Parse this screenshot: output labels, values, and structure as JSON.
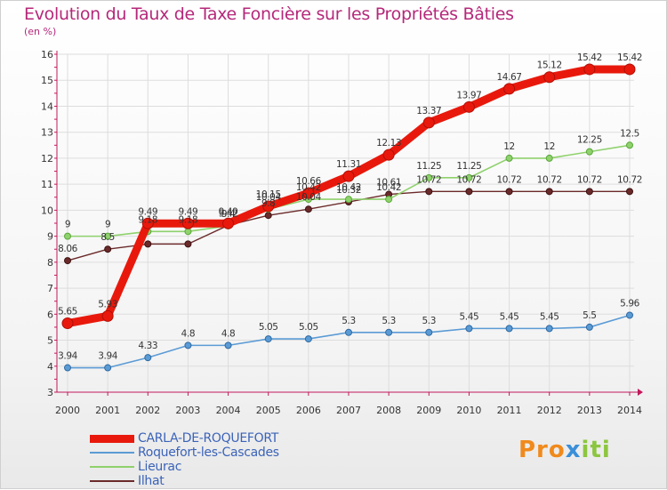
{
  "colors": {
    "title": "#b5287a",
    "axis": "#c2185b",
    "tick_text": "#333333",
    "grid": "#dddddd"
  },
  "logo": {
    "text": "Proxiti",
    "part1": "Pro",
    "part2": "x",
    "part3": "iti"
  },
  "chart_data": {
    "type": "line",
    "title": "Evolution du Taux de Taxe Foncière sur les Propriétés Bâties",
    "ylabel": "(en %)",
    "xlabel": "",
    "x": [
      "2000",
      "2001",
      "2002",
      "2003",
      "2004",
      "2005",
      "2006",
      "2007",
      "2008",
      "2009",
      "2010",
      "2011",
      "2012",
      "2013",
      "2014"
    ],
    "ylim": [
      3,
      16
    ],
    "yticks": [
      3,
      4,
      5,
      6,
      7,
      8,
      9,
      10,
      11,
      12,
      13,
      14,
      15,
      16
    ],
    "grid": true,
    "legend_position": "bottom-left",
    "series": [
      {
        "name": "CARLA-DE-ROQUEFORT",
        "color": "#e8190c",
        "values": [
          5.65,
          5.93,
          9.49,
          9.49,
          9.49,
          10.15,
          10.66,
          11.31,
          12.13,
          13.37,
          13.97,
          14.67,
          15.12,
          15.42,
          15.42
        ],
        "labels": [
          "5.65",
          "5.93",
          "9.49",
          "9.49",
          "9.49",
          "10.15",
          "10.66",
          "11.31",
          "12.13",
          "13.37",
          "13.97",
          "14.67",
          "15.12",
          "15.42",
          "15.42"
        ]
      },
      {
        "name": "Roquefort-les-Cascades",
        "color": "#5b9bd5",
        "values": [
          3.94,
          3.94,
          4.33,
          4.8,
          4.8,
          5.05,
          5.05,
          5.3,
          5.3,
          5.3,
          5.45,
          5.45,
          5.45,
          5.5,
          5.96
        ],
        "labels": [
          "3.94",
          "3.94",
          "4.33",
          "4.8",
          "4.8",
          "5.05",
          "5.05",
          "5.3",
          "5.3",
          "5.3",
          "5.45",
          "5.45",
          "5.45",
          "5.5",
          "5.96"
        ]
      },
      {
        "name": "Lieurac",
        "color": "#8fd16c",
        "values": [
          9,
          9,
          9.18,
          9.18,
          9.4,
          10.04,
          10.42,
          10.42,
          10.42,
          11.25,
          11.25,
          12,
          12,
          12.25,
          12.5
        ],
        "labels": [
          "9",
          "9",
          "9.18",
          "9.18",
          "9.4",
          "10.04",
          "10.42",
          "10.42",
          "10.42",
          "11.25",
          "11.25",
          "12",
          "12",
          "12.25",
          "12.5"
        ]
      },
      {
        "name": "Ilhat",
        "color": "#6b2a2a",
        "values": [
          8.06,
          8.5,
          8.7,
          8.7,
          9.42,
          9.8,
          10.04,
          10.32,
          10.61,
          10.72,
          10.72,
          10.72,
          10.72,
          10.72,
          10.72
        ],
        "labels": [
          "8.06",
          "8.5",
          "",
          "",
          "9.42",
          "9.8",
          "10.04",
          "10.32",
          "10.61",
          "10.72",
          "10.72",
          "10.72",
          "10.72",
          "10.72",
          "10.72"
        ]
      }
    ]
  }
}
